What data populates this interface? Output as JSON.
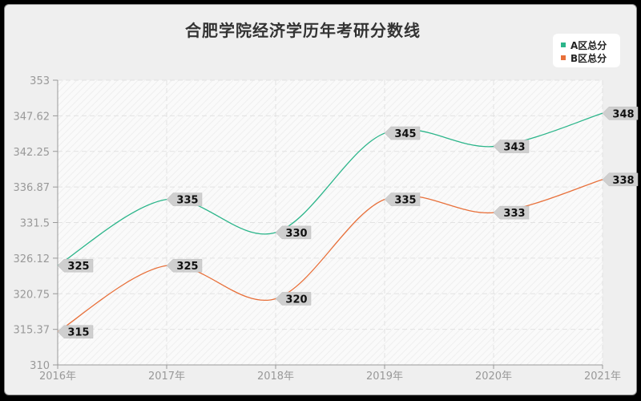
{
  "title": "合肥学院经济学历年考研分数线",
  "legend": [
    {
      "label": "A区总分",
      "color": "#2bb58a"
    },
    {
      "label": "B区总分",
      "color": "#e8703a"
    }
  ],
  "chart_data": {
    "type": "line",
    "title": "合肥学院经济学历年考研分数线",
    "xlabel": "",
    "ylabel": "",
    "categories": [
      "2016年",
      "2017年",
      "2018年",
      "2019年",
      "2020年",
      "2021年"
    ],
    "series": [
      {
        "name": "A区总分",
        "color": "#2bb58a",
        "values": [
          325,
          335,
          330,
          345,
          343,
          348
        ]
      },
      {
        "name": "B区总分",
        "color": "#e8703a",
        "values": [
          315,
          325,
          320,
          335,
          333,
          338
        ]
      }
    ],
    "ylim": [
      310,
      353
    ],
    "yticks": [
      "310",
      "315.37",
      "320.75",
      "326.12",
      "331.5",
      "336.87",
      "342.25",
      "347.62",
      "353"
    ],
    "ytick_values": [
      310,
      315.37,
      320.75,
      326.12,
      331.5,
      336.87,
      342.25,
      347.62,
      353
    ],
    "grid": true,
    "smooth": true,
    "legend_position": "top-right"
  }
}
